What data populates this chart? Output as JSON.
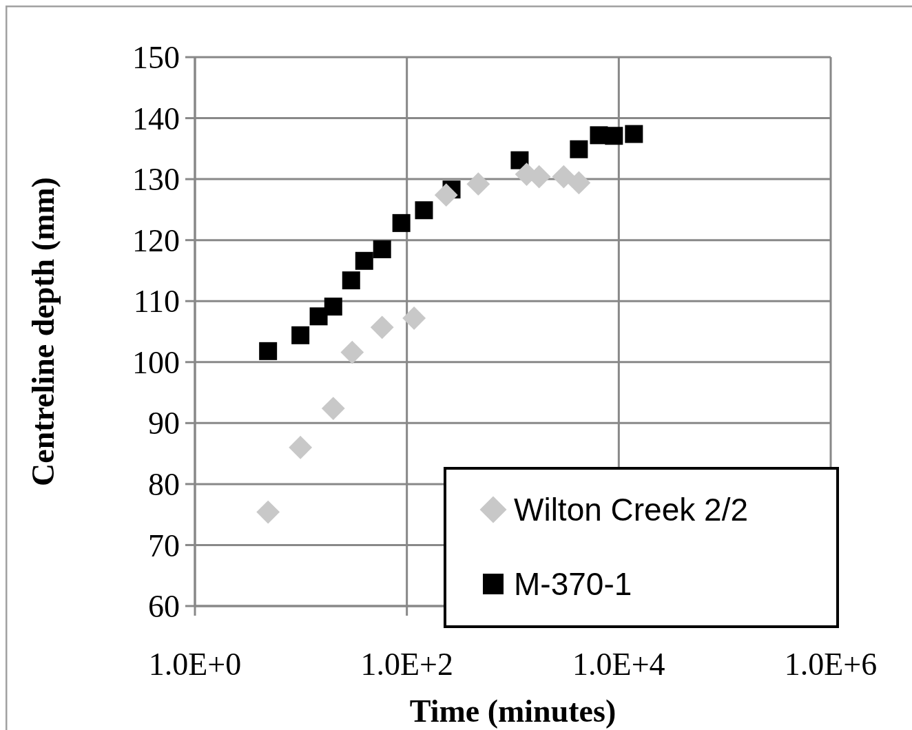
{
  "chart_data": {
    "type": "scatter",
    "xlabel": "Time (minutes)",
    "ylabel": "Centreline depth (mm)",
    "log": "x",
    "xlim": [
      1,
      1000000
    ],
    "xticks": [
      {
        "value": 1,
        "label": "1.0E+0"
      },
      {
        "value": 100,
        "label": "1.0E+2"
      },
      {
        "value": 10000,
        "label": "1.0E+4"
      },
      {
        "value": 1000000,
        "label": "1.0E+6"
      }
    ],
    "ylim": [
      60,
      150
    ],
    "yticks": [
      60,
      70,
      80,
      90,
      100,
      110,
      120,
      130,
      140,
      150
    ],
    "grid": true,
    "legend": "bottom right",
    "series": [
      {
        "name": "Wilton Creek 2/2",
        "color": "#c8c8c8",
        "marker": "diamond",
        "x": [
          4.9,
          9.9,
          20.2,
          30.5,
          58.4,
          117,
          235,
          472,
          1350,
          1770,
          3020,
          4200
        ],
        "values": [
          75.4,
          86.0,
          92.4,
          101.6,
          105.7,
          107.2,
          127.4,
          129.2,
          130.8,
          130.4,
          130.4,
          129.4
        ]
      },
      {
        "name": "M-370-1",
        "color": "#000000",
        "marker": "square",
        "x": [
          4.9,
          9.9,
          14.7,
          20.2,
          29.8,
          39.6,
          58.4,
          88.7,
          145,
          264,
          1160,
          4200,
          6490,
          9000,
          13900
        ],
        "values": [
          101.8,
          104.4,
          107.5,
          109.1,
          113.4,
          116.6,
          118.5,
          122.8,
          124.9,
          128.3,
          133.1,
          134.9,
          137.2,
          137.1,
          137.4
        ]
      }
    ]
  }
}
